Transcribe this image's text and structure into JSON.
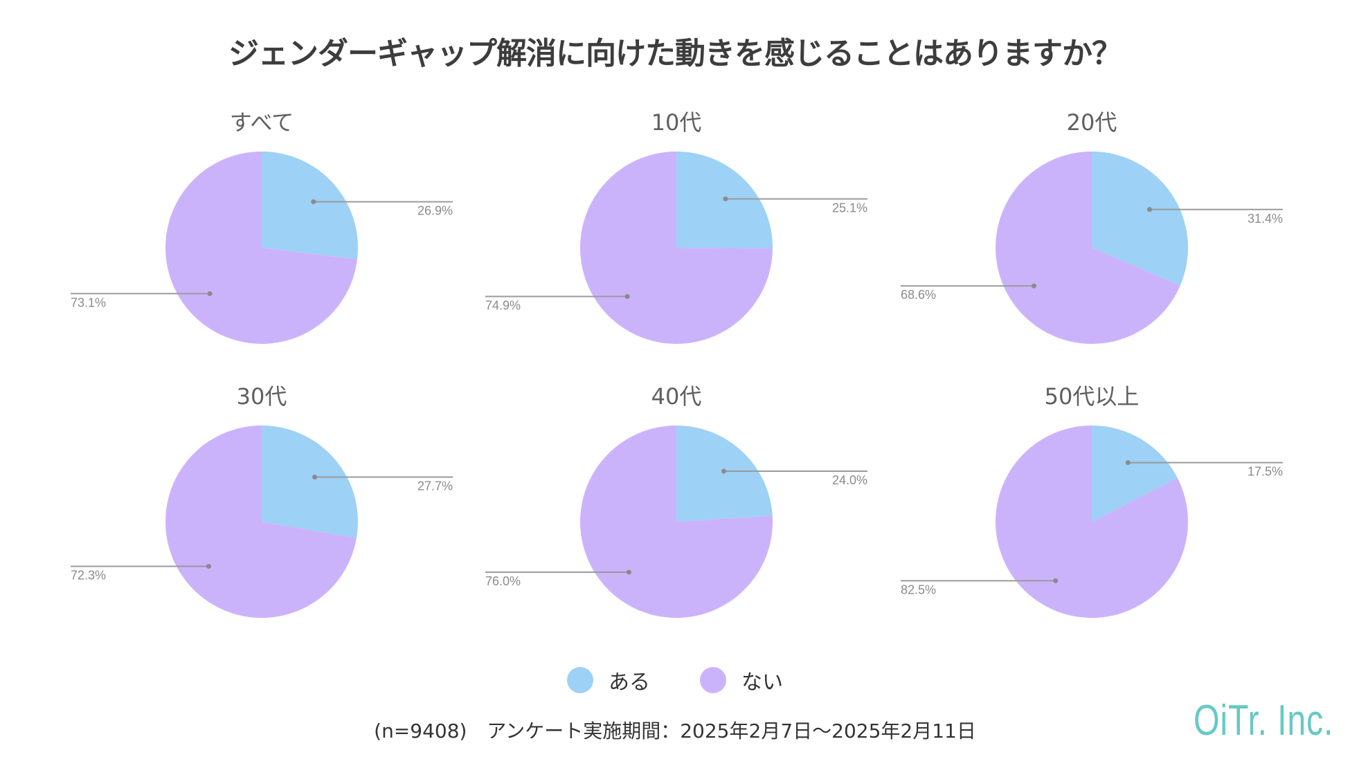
{
  "title": "ジェンダーギャップ解消に向けた動きを感じることはありますか？",
  "legend": [
    {
      "label": "ある",
      "color": "#9dd1f5"
    },
    {
      "label": "ない",
      "color": "#cbb3fc"
    }
  ],
  "footnote": {
    "sample": "(n=9408)",
    "period": "アンケート実施期間：2025年2月7日〜2025年2月11日"
  },
  "brand": "OiTr. Inc.",
  "chart_data": [
    {
      "type": "pie",
      "title": "すべて",
      "categories": [
        "ある",
        "ない"
      ],
      "values": [
        26.9,
        73.1
      ],
      "labels": [
        "26.9%",
        "73.1%"
      ]
    },
    {
      "type": "pie",
      "title": "10代",
      "categories": [
        "ある",
        "ない"
      ],
      "values": [
        25.1,
        74.9
      ],
      "labels": [
        "25.1%",
        "74.9%"
      ]
    },
    {
      "type": "pie",
      "title": "20代",
      "categories": [
        "ある",
        "ない"
      ],
      "values": [
        31.4,
        68.6
      ],
      "labels": [
        "31.4%",
        "68.6%"
      ]
    },
    {
      "type": "pie",
      "title": "30代",
      "categories": [
        "ある",
        "ない"
      ],
      "values": [
        27.7,
        72.3
      ],
      "labels": [
        "27.7%",
        "72.3%"
      ]
    },
    {
      "type": "pie",
      "title": "40代",
      "categories": [
        "ある",
        "ない"
      ],
      "values": [
        24.0,
        76.0
      ],
      "labels": [
        "24.0%",
        "76.0%"
      ]
    },
    {
      "type": "pie",
      "title": "50代以上",
      "categories": [
        "ある",
        "ない"
      ],
      "values": [
        17.5,
        82.5
      ],
      "labels": [
        "17.5%",
        "82.5%"
      ]
    }
  ]
}
